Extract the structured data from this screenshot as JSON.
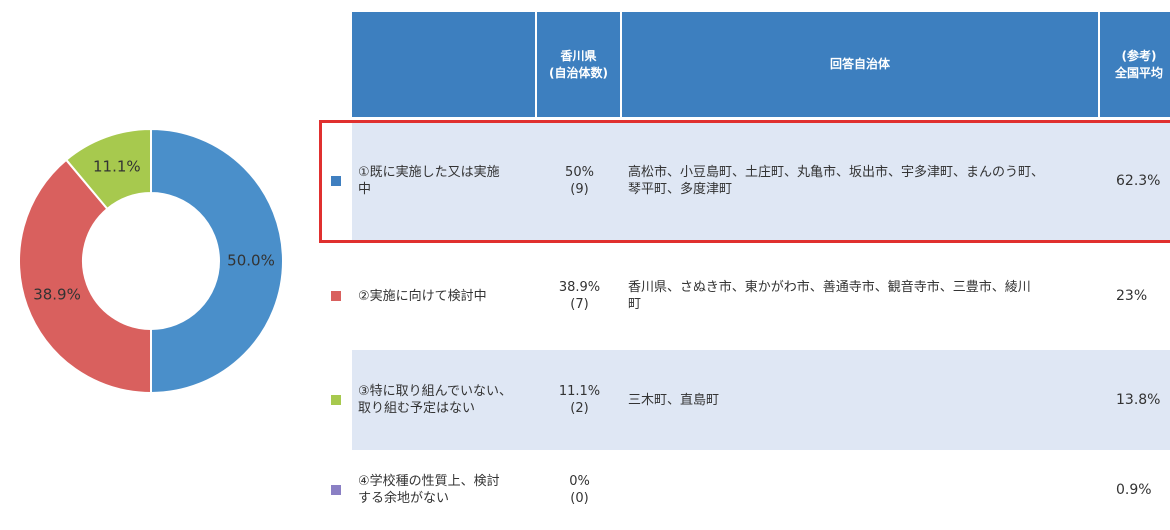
{
  "chart_data": {
    "type": "donut",
    "values": [
      50.0,
      38.9,
      11.1
    ],
    "value_labels": [
      "50.0%",
      "38.9%",
      "11.1%"
    ],
    "colors": [
      "#4a8fca",
      "#d9605e",
      "#a7c94e"
    ]
  },
  "table": {
    "header": [
      [],
      [
        "香川県",
        "(自治体数)"
      ],
      [
        "回答自治体"
      ],
      [
        "(参考)",
        "全国平均"
      ]
    ],
    "rows": [
      {
        "marker": "#3f7fc0",
        "label": [
          "①既に実施した又は実施",
          "中"
        ],
        "pct": "50%",
        "count": "(9)",
        "municipalities": [
          "高松市、小豆島町、土庄町、丸亀市、坂出市、宇多津町、まんのう町、",
          "琴平町、多度津町"
        ],
        "national": "62.3%"
      },
      {
        "marker": "#d9605e",
        "label": [
          "②実施に向けて検討中"
        ],
        "pct": "38.9%",
        "count": "(7)",
        "municipalities": [
          "香川県、さぬき市、東かがわ市、善通寺市、観音寺市、三豊市、綾川",
          "町"
        ],
        "national": "23%"
      },
      {
        "marker": "#a7c94e",
        "label": [
          "③特に取り組んでいない、",
          "取り組む予定はない"
        ],
        "pct": "11.1%",
        "count": "(2)",
        "municipalities": [
          "三木町、直島町"
        ],
        "national": "13.8%"
      },
      {
        "marker": "#8a7fc4",
        "label": [
          "④学校種の性質上、検討",
          "する余地がない"
        ],
        "pct": "0%",
        "count": "(0)",
        "municipalities": [],
        "national": "0.9%"
      }
    ]
  }
}
